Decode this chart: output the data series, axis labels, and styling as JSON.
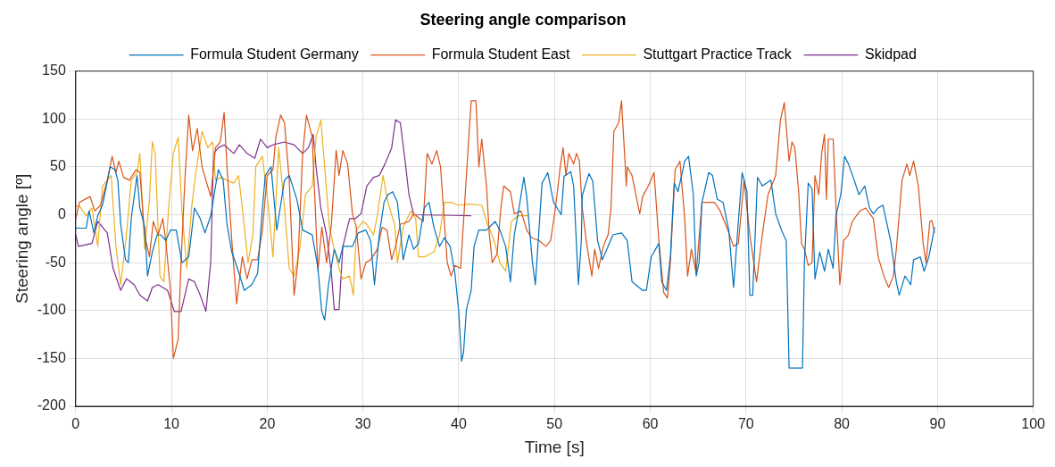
{
  "chart_data": {
    "type": "line",
    "title": "Steering angle comparison",
    "xlabel": "Time [s]",
    "ylabel": "Steering angle [º]",
    "xlim": [
      0,
      100
    ],
    "xticks": [
      0,
      10,
      20,
      30,
      40,
      50,
      60,
      70,
      80,
      90,
      100
    ],
    "ylim": [
      -200,
      150
    ],
    "yticks": [
      -200,
      -150,
      -100,
      -50,
      0,
      50,
      100,
      150
    ],
    "grid": true,
    "legend": "top",
    "line_style": "solid",
    "marker": "none",
    "series": [
      {
        "name": "Formula Student Germany",
        "color": "#0072bd",
        "x": [
          0,
          1.1,
          1.4,
          1.9,
          2.3,
          2.8,
          3.6,
          4.1,
          4.4,
          4.7,
          5.2,
          5.5,
          5.8,
          6.4,
          6.7,
          7.2,
          7.5,
          8.0,
          8.5,
          8.9,
          9.4,
          9.9,
          10.5,
          11.1,
          11.8,
          12.4,
          13.0,
          13.5,
          14.1,
          14.6,
          14.9,
          15.4,
          15.8,
          16.3,
          17.0,
          17.6,
          18.4,
          19.0,
          19.5,
          19.8,
          20.4,
          21.0,
          21.8,
          22.3,
          23.1,
          23.7,
          24.7,
          25.3,
          25.7,
          26.0,
          26.4,
          27.0,
          27.5,
          27.9,
          28.9,
          29.5,
          30.3,
          30.8,
          31.2,
          31.7,
          32.2,
          32.6,
          33.1,
          33.6,
          33.9,
          34.2,
          34.8,
          35.3,
          35.8,
          36.4,
          36.9,
          37.4,
          38.0,
          38.5,
          39.1,
          39.6,
          40.0,
          40.3,
          40.5,
          40.8,
          41.3,
          41.6,
          42.1,
          42.9,
          43.5,
          43.8,
          44.3,
          44.9,
          45.4,
          45.8,
          46.3,
          46.8,
          47.1,
          47.7,
          48.0,
          48.7,
          49.3,
          49.9,
          50.7,
          51.0,
          51.7,
          52.0,
          52.5,
          52.8,
          52.9,
          53.6,
          54.0,
          54.5,
          55.0,
          56.1,
          57.0,
          57.6,
          58.1,
          59.2,
          59.6,
          60.1,
          60.9,
          61.2,
          61.7,
          62.1,
          62.5,
          62.9,
          63.6,
          64.0,
          64.5,
          64.8,
          65.1,
          65.4,
          66.1,
          66.5,
          67.0,
          67.6,
          68.2,
          68.7,
          69.2,
          69.6,
          70.1,
          70.4,
          70.7,
          71.2,
          71.7,
          72.6,
          73.1,
          73.7,
          74.2,
          74.5,
          75.9,
          76.1,
          76.5,
          76.9,
          77.2,
          77.7,
          78.2,
          78.6,
          79.1,
          79.4,
          79.9,
          80.3,
          80.7,
          81.3,
          81.8,
          82.4,
          82.9,
          83.3,
          83.8,
          84.3,
          85.1,
          85.7,
          86.0,
          86.6,
          87.2,
          87.5,
          88.2,
          88.6,
          89.1,
          89.7
        ],
        "values": [
          -14,
          -14,
          4,
          -19,
          -1,
          10,
          50,
          47,
          36,
          -10,
          -47,
          -50,
          -4,
          41,
          7,
          -13,
          -64,
          -39,
          -21,
          -21,
          -27,
          -16,
          -16,
          -50,
          -44,
          7,
          -4,
          -19,
          -1,
          30,
          47,
          36,
          -10,
          -39,
          -59,
          -79,
          -73,
          -61,
          7,
          41,
          50,
          -16,
          36,
          41,
          16,
          -16,
          -21,
          -56,
          -101,
          -110,
          -73,
          -36,
          -50,
          -33,
          -33,
          -19,
          -16,
          -27,
          -73,
          -21,
          13,
          21,
          24,
          13,
          -16,
          -47,
          -21,
          -36,
          -30,
          7,
          13,
          -13,
          -33,
          -24,
          -33,
          -61,
          -101,
          -153,
          -144,
          -99,
          -79,
          -33,
          -16,
          -16,
          -10,
          -7,
          -16,
          -33,
          -70,
          -21,
          7,
          39,
          19,
          -50,
          -73,
          33,
          44,
          13,
          0,
          40,
          45,
          30,
          -73,
          -27,
          20,
          43,
          35,
          -27,
          -47,
          -21,
          -19,
          -27,
          -70,
          -79,
          -79,
          -44,
          -30,
          -70,
          -79,
          -44,
          33,
          24,
          56,
          61,
          21,
          -64,
          -50,
          13,
          44,
          41,
          16,
          13,
          -16,
          -76,
          -7,
          44,
          24,
          -84,
          -84,
          39,
          30,
          36,
          1,
          -16,
          -27,
          -160,
          -160,
          -50,
          33,
          27,
          -67,
          -39,
          -59,
          -36,
          -56,
          -1,
          21,
          61,
          53,
          36,
          21,
          30,
          7,
          1,
          7,
          10,
          -27,
          -70,
          -84,
          -64,
          -73,
          -47,
          -44,
          -59,
          -44,
          -13
        ]
      },
      {
        "name": "Formula Student East",
        "color": "#d95319",
        "x": [
          0,
          0.4,
          1.5,
          2.0,
          2.6,
          3.3,
          3.8,
          4.2,
          4.5,
          5.0,
          5.6,
          6.3,
          6.7,
          7.2,
          7.7,
          8.1,
          8.6,
          9.1,
          9.4,
          9.9,
          10.2,
          10.7,
          11.0,
          11.4,
          11.8,
          12.2,
          12.7,
          13.2,
          13.6,
          14.1,
          14.6,
          15.1,
          15.5,
          15.8,
          16.3,
          16.8,
          17.4,
          17.9,
          18.4,
          19.0,
          19.5,
          20.0,
          20.6,
          20.9,
          21.4,
          21.8,
          22.3,
          22.8,
          23.2,
          23.7,
          24.1,
          24.7,
          25.3,
          25.7,
          26.2,
          26.7,
          27.2,
          27.5,
          27.9,
          28.4,
          28.9,
          29.3,
          29.8,
          30.3,
          30.8,
          31.5,
          32.0,
          32.5,
          33.0,
          33.4,
          33.9,
          34.8,
          35.3,
          36.3,
          36.7,
          37.2,
          37.7,
          38.1,
          38.8,
          39.2,
          39.6,
          40.2,
          40.8,
          41.3,
          41.8,
          42.1,
          42.4,
          42.9,
          43.2,
          43.5,
          44.0,
          44.4,
          44.7,
          45.4,
          45.8,
          46.5,
          47.1,
          47.6,
          48.4,
          49.1,
          49.6,
          50.1,
          50.6,
          50.9,
          51.2,
          51.5,
          52.0,
          52.3,
          52.6,
          52.9,
          53.4,
          53.9,
          54.2,
          54.6,
          55.1,
          55.6,
          55.9,
          56.2,
          56.7,
          57.0,
          57.3,
          57.5,
          57.6,
          58.1,
          58.9,
          59.2,
          59.8,
          60.4,
          60.9,
          61.4,
          61.8,
          62.1,
          62.6,
          63.1,
          63.6,
          63.9,
          64.3,
          64.8,
          65.4,
          66.1,
          66.7,
          67.3,
          68.1,
          68.7,
          69.2,
          69.8,
          70.4,
          71.1,
          71.7,
          72.3,
          73.1,
          73.6,
          74.0,
          74.5,
          74.8,
          75.1,
          75.5,
          75.8,
          76.1,
          76.5,
          76.9,
          77.2,
          77.6,
          77.9,
          78.2,
          78.4,
          78.6,
          79.1,
          79.4,
          79.8,
          80.2,
          80.7,
          81.1,
          81.9,
          82.5,
          83.3,
          83.8,
          84.4,
          84.9,
          85.4,
          85.7,
          86.3,
          86.8,
          87.1,
          87.5,
          88.0,
          88.5,
          88.8,
          89.2,
          89.4,
          89.7
        ],
        "values": [
          -4,
          13,
          19,
          4,
          10,
          36,
          61,
          44,
          56,
          39,
          36,
          47,
          44,
          -21,
          -44,
          -7,
          -21,
          -4,
          -27,
          -79,
          -150,
          -130,
          -50,
          36,
          104,
          67,
          90,
          50,
          36,
          19,
          70,
          76,
          107,
          50,
          -27,
          -93,
          -44,
          -67,
          -47,
          -47,
          -16,
          41,
          47,
          81,
          104,
          96,
          36,
          -84,
          -50,
          64,
          104,
          81,
          -59,
          -13,
          -50,
          -10,
          67,
          41,
          67,
          53,
          1,
          -13,
          -67,
          -50,
          -47,
          -36,
          -13,
          -16,
          -47,
          -33,
          -10,
          -7,
          1,
          -7,
          64,
          53,
          67,
          50,
          -50,
          -64,
          -53,
          -56,
          41,
          119,
          119,
          50,
          79,
          30,
          -21,
          -50,
          -41,
          7,
          30,
          24,
          1,
          4,
          -16,
          -24,
          -27,
          -33,
          -27,
          7,
          50,
          70,
          41,
          64,
          53,
          64,
          56,
          7,
          -33,
          -64,
          -36,
          -56,
          -33,
          -21,
          7,
          87,
          96,
          119,
          67,
          30,
          50,
          41,
          1,
          19,
          30,
          44,
          -27,
          -81,
          -87,
          -50,
          47,
          56,
          -4,
          -64,
          -36,
          -61,
          13,
          13,
          13,
          4,
          -16,
          -33,
          -30,
          36,
          -21,
          -70,
          -21,
          21,
          41,
          99,
          117,
          56,
          76,
          70,
          24,
          -30,
          -36,
          -53,
          -50,
          41,
          21,
          64,
          84,
          16,
          79,
          79,
          7,
          -73,
          -27,
          -21,
          -7,
          4,
          7,
          -4,
          -44,
          -64,
          -76,
          -64,
          -36,
          36,
          53,
          41,
          56,
          30,
          -30,
          -50,
          -7,
          -6,
          -19
        ]
      },
      {
        "name": "Stuttgart Practice Track",
        "color": "#edb120",
        "x": [
          0,
          0.4,
          1.1,
          1.7,
          2.3,
          2.8,
          3.3,
          3.7,
          4.2,
          4.7,
          5.3,
          5.8,
          6.4,
          6.7,
          7.2,
          7.7,
          8.0,
          8.3,
          8.8,
          9.2,
          9.7,
          10.2,
          10.7,
          11.1,
          11.6,
          12.1,
          12.5,
          13.2,
          13.8,
          14.3,
          14.6,
          15.2,
          15.8,
          16.5,
          17.0,
          17.3,
          18.0,
          18.5,
          18.8,
          19.5,
          20.1,
          20.6,
          21.2,
          21.8,
          22.3,
          22.8,
          23.4,
          24.0,
          24.7,
          25.1,
          25.6,
          26.0,
          26.5,
          27.0,
          27.5,
          27.9,
          28.6,
          29.0,
          29.3,
          30.0,
          30.4,
          31.1,
          31.5,
          32.1,
          32.6,
          33.3,
          33.6,
          34.2,
          35.0,
          35.5,
          35.8,
          36.4,
          37.4,
          38.0,
          38.5,
          39.2,
          39.9,
          41.1,
          42.4,
          43.0,
          43.6,
          44.3,
          44.9,
          45.5,
          46.2,
          47.3
        ],
        "values": [
          9,
          9,
          -1,
          7,
          -33,
          30,
          36,
          41,
          -33,
          -73,
          -21,
          36,
          44,
          64,
          -36,
          16,
          76,
          64,
          -64,
          -70,
          7,
          64,
          81,
          4,
          -56,
          7,
          41,
          87,
          70,
          76,
          36,
          39,
          36,
          33,
          41,
          16,
          -50,
          -21,
          50,
          61,
          10,
          -44,
          70,
          7,
          -56,
          -64,
          -36,
          21,
          30,
          81,
          99,
          50,
          -13,
          -36,
          -56,
          -67,
          -64,
          -84,
          -16,
          -7,
          -10,
          -21,
          -1,
          41,
          13,
          -10,
          -50,
          -13,
          4,
          -4,
          -44,
          -44,
          -39,
          -21,
          13,
          13,
          10,
          11,
          10,
          -10,
          -24,
          -50,
          -59,
          -7,
          -1,
          -1
        ]
      },
      {
        "name": "Skidpad",
        "color": "#7e2f8e",
        "x": [
          0,
          0.3,
          1.7,
          2.3,
          3.3,
          3.9,
          4.7,
          5.3,
          6.1,
          6.7,
          7.5,
          8.0,
          8.6,
          9.6,
          10.3,
          11.0,
          11.8,
          12.4,
          13.0,
          13.6,
          14.1,
          14.4,
          14.9,
          15.5,
          16.5,
          17.1,
          17.9,
          18.7,
          19.3,
          20.0,
          20.6,
          21.8,
          22.8,
          23.7,
          24.3,
          24.8,
          25.1,
          25.6,
          26.2,
          26.7,
          27.0,
          27.5,
          27.9,
          28.6,
          29.2,
          29.8,
          30.4,
          31.1,
          31.7,
          32.3,
          33.0,
          33.4,
          33.9,
          34.4,
          34.8,
          35.3,
          41.3
        ],
        "values": [
          -21,
          -33,
          -30,
          -7,
          -19,
          -56,
          -79,
          -67,
          -73,
          -84,
          -90,
          -76,
          -73,
          -79,
          -101,
          -101,
          -67,
          -70,
          -84,
          -101,
          -50,
          64,
          70,
          73,
          64,
          73,
          64,
          59,
          79,
          70,
          73,
          76,
          73,
          64,
          70,
          84,
          50,
          7,
          -21,
          -61,
          -99,
          -99,
          -33,
          -4,
          -4,
          1,
          30,
          39,
          41,
          53,
          70,
          99,
          96,
          56,
          21,
          0,
          -1
        ]
      }
    ]
  }
}
